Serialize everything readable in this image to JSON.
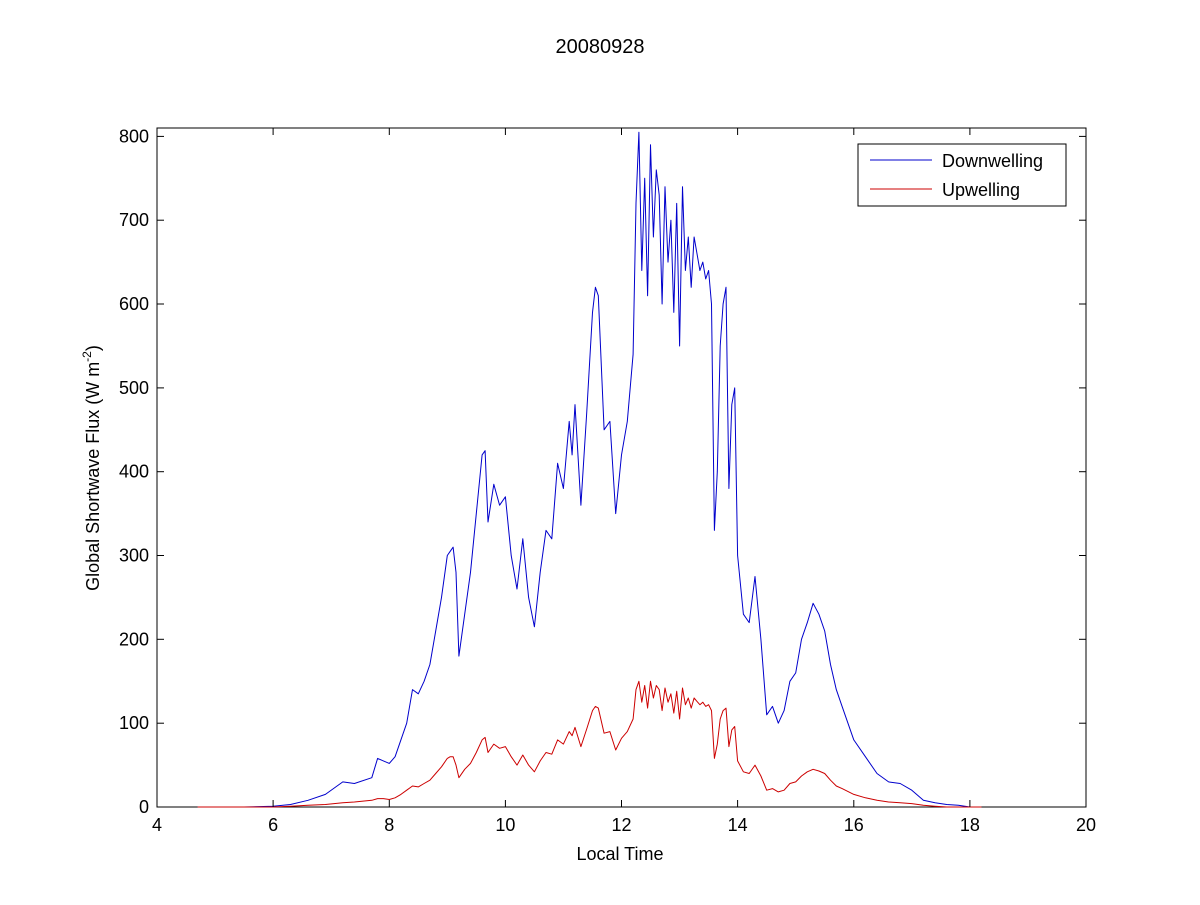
{
  "chart_data": {
    "type": "line",
    "title": "20080928",
    "xlabel": "Local Time",
    "ylabel": "Global Shortwave Flux (W m",
    "ylabel_sup": "-2",
    "ylabel_end": ")",
    "xlim": [
      4,
      20
    ],
    "ylim": [
      0,
      810
    ],
    "xticks": [
      "4",
      "6",
      "8",
      "10",
      "12",
      "14",
      "16",
      "18",
      "20"
    ],
    "yticks": [
      "0",
      "100",
      "200",
      "300",
      "400",
      "500",
      "600",
      "700",
      "800"
    ],
    "grid": false,
    "legend_position": "top-right",
    "series": [
      {
        "name": "Downwelling",
        "color": "#0000cc",
        "x": [
          4.7,
          5.5,
          6.0,
          6.3,
          6.6,
          6.9,
          7.2,
          7.4,
          7.7,
          7.8,
          7.9,
          8.0,
          8.1,
          8.2,
          8.3,
          8.4,
          8.5,
          8.6,
          8.7,
          8.8,
          8.9,
          9.0,
          9.05,
          9.1,
          9.15,
          9.2,
          9.3,
          9.4,
          9.5,
          9.6,
          9.65,
          9.7,
          9.8,
          9.9,
          10.0,
          10.1,
          10.15,
          10.2,
          10.3,
          10.4,
          10.5,
          10.6,
          10.7,
          10.8,
          10.9,
          11.0,
          11.1,
          11.15,
          11.2,
          11.3,
          11.4,
          11.5,
          11.55,
          11.6,
          11.7,
          11.8,
          11.9,
          12.0,
          12.1,
          12.2,
          12.25,
          12.3,
          12.35,
          12.4,
          12.45,
          12.5,
          12.55,
          12.6,
          12.65,
          12.7,
          12.75,
          12.8,
          12.85,
          12.9,
          12.95,
          13.0,
          13.05,
          13.1,
          13.15,
          13.2,
          13.25,
          13.3,
          13.35,
          13.4,
          13.45,
          13.5,
          13.55,
          13.6,
          13.65,
          13.7,
          13.75,
          13.8,
          13.85,
          13.9,
          13.95,
          14.0,
          14.1,
          14.2,
          14.3,
          14.4,
          14.5,
          14.6,
          14.7,
          14.8,
          14.9,
          15.0,
          15.1,
          15.2,
          15.3,
          15.4,
          15.5,
          15.6,
          15.7,
          15.8,
          16.0,
          16.2,
          16.4,
          16.6,
          16.8,
          17.0,
          17.2,
          17.4,
          17.6,
          17.8,
          18.0,
          18.2
        ],
        "y": [
          0,
          0,
          1,
          3,
          8,
          15,
          30,
          28,
          35,
          58,
          55,
          52,
          60,
          80,
          100,
          140,
          135,
          150,
          170,
          210,
          250,
          300,
          305,
          310,
          280,
          180,
          230,
          280,
          350,
          420,
          425,
          340,
          385,
          360,
          370,
          300,
          280,
          260,
          320,
          250,
          215,
          280,
          330,
          320,
          410,
          380,
          460,
          420,
          480,
          360,
          470,
          590,
          620,
          610,
          450,
          460,
          350,
          420,
          460,
          540,
          720,
          805,
          640,
          750,
          610,
          790,
          680,
          760,
          730,
          600,
          740,
          650,
          700,
          590,
          720,
          550,
          740,
          640,
          680,
          620,
          680,
          660,
          640,
          650,
          630,
          640,
          600,
          330,
          400,
          550,
          600,
          620,
          380,
          480,
          500,
          300,
          230,
          220,
          275,
          200,
          110,
          120,
          100,
          115,
          150,
          160,
          200,
          220,
          243,
          230,
          210,
          170,
          140,
          120,
          80,
          60,
          40,
          30,
          28,
          20,
          8,
          5,
          3,
          2,
          0,
          0
        ]
      },
      {
        "name": "Upwelling",
        "color": "#cc0000",
        "x": [
          4.7,
          5.5,
          6.0,
          6.3,
          6.6,
          6.9,
          7.2,
          7.4,
          7.7,
          7.8,
          7.9,
          8.0,
          8.1,
          8.2,
          8.3,
          8.4,
          8.5,
          8.6,
          8.7,
          8.8,
          8.9,
          9.0,
          9.05,
          9.1,
          9.15,
          9.2,
          9.3,
          9.4,
          9.5,
          9.6,
          9.65,
          9.7,
          9.8,
          9.9,
          10.0,
          10.1,
          10.15,
          10.2,
          10.3,
          10.4,
          10.5,
          10.6,
          10.7,
          10.8,
          10.9,
          11.0,
          11.1,
          11.15,
          11.2,
          11.3,
          11.4,
          11.5,
          11.55,
          11.6,
          11.7,
          11.8,
          11.9,
          12.0,
          12.1,
          12.2,
          12.25,
          12.3,
          12.35,
          12.4,
          12.45,
          12.5,
          12.55,
          12.6,
          12.65,
          12.7,
          12.75,
          12.8,
          12.85,
          12.9,
          12.95,
          13.0,
          13.05,
          13.1,
          13.15,
          13.2,
          13.25,
          13.3,
          13.35,
          13.4,
          13.45,
          13.5,
          13.55,
          13.6,
          13.65,
          13.7,
          13.75,
          13.8,
          13.85,
          13.9,
          13.95,
          14.0,
          14.1,
          14.2,
          14.3,
          14.4,
          14.5,
          14.6,
          14.7,
          14.8,
          14.9,
          15.0,
          15.1,
          15.2,
          15.3,
          15.4,
          15.5,
          15.6,
          15.7,
          15.8,
          16.0,
          16.2,
          16.4,
          16.6,
          16.8,
          17.0,
          17.2,
          17.4,
          17.6,
          17.8,
          18.0,
          18.2
        ],
        "y": [
          0,
          0,
          0,
          1,
          2,
          3,
          5,
          6,
          8,
          10,
          10,
          9,
          11,
          15,
          20,
          25,
          24,
          28,
          32,
          40,
          48,
          58,
          60,
          60,
          50,
          35,
          45,
          52,
          65,
          80,
          83,
          65,
          75,
          70,
          72,
          60,
          55,
          50,
          62,
          50,
          42,
          55,
          65,
          63,
          80,
          75,
          90,
          85,
          95,
          72,
          93,
          115,
          120,
          118,
          88,
          90,
          68,
          82,
          90,
          105,
          140,
          150,
          125,
          145,
          118,
          150,
          130,
          145,
          140,
          115,
          142,
          125,
          135,
          112,
          138,
          105,
          142,
          122,
          130,
          118,
          130,
          126,
          122,
          125,
          120,
          122,
          115,
          58,
          75,
          105,
          115,
          118,
          72,
          92,
          96,
          55,
          42,
          40,
          50,
          37,
          20,
          22,
          18,
          20,
          28,
          30,
          37,
          42,
          45,
          43,
          40,
          32,
          25,
          22,
          15,
          11,
          8,
          6,
          5,
          4,
          2,
          1,
          0,
          0,
          0,
          0
        ]
      }
    ]
  }
}
